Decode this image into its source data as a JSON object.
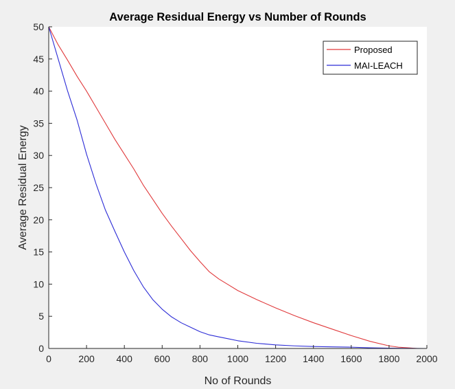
{
  "chart_data": {
    "type": "line",
    "title": "Average Residual Energy vs Number of Rounds",
    "xlabel": "No of Rounds",
    "ylabel": "Average Residual Energy",
    "xlim": [
      0,
      2000
    ],
    "ylim": [
      0,
      50
    ],
    "xticks": [
      0,
      200,
      400,
      600,
      800,
      1000,
      1200,
      1400,
      1600,
      1800,
      2000
    ],
    "yticks": [
      0,
      5,
      10,
      15,
      20,
      25,
      30,
      35,
      40,
      45,
      50
    ],
    "grid": false,
    "legend_position": "top-right",
    "series": [
      {
        "name": "Proposed",
        "color": "#e0393b",
        "x": [
          0,
          50,
          100,
          150,
          200,
          250,
          300,
          350,
          400,
          450,
          500,
          550,
          600,
          650,
          700,
          750,
          800,
          850,
          900,
          950,
          1000,
          1100,
          1200,
          1300,
          1400,
          1500,
          1600,
          1700,
          1800,
          1850,
          1900,
          1950,
          2000
        ],
        "values": [
          50,
          47.2,
          44.8,
          42.3,
          40,
          37.5,
          35,
          32.5,
          30.2,
          27.9,
          25.4,
          23.2,
          21,
          19,
          17.1,
          15.2,
          13.5,
          11.9,
          10.8,
          9.9,
          9,
          7.6,
          6.3,
          5.1,
          4,
          3,
          2,
          1.1,
          0.4,
          0.2,
          0.1,
          0,
          0
        ]
      },
      {
        "name": "MAI-LEACH",
        "color": "#2b2bd6",
        "x": [
          0,
          50,
          100,
          150,
          200,
          250,
          300,
          350,
          400,
          450,
          500,
          550,
          600,
          650,
          700,
          750,
          800,
          850,
          900,
          950,
          1000,
          1100,
          1200,
          1300,
          1400,
          1500,
          1600,
          1700,
          1800,
          1900,
          2000
        ],
        "values": [
          50,
          45,
          40,
          35.5,
          30.2,
          25.6,
          21.5,
          18.2,
          15,
          12.1,
          9.6,
          7.6,
          6.1,
          4.9,
          4,
          3.3,
          2.6,
          2.1,
          1.8,
          1.5,
          1.2,
          0.8,
          0.55,
          0.4,
          0.3,
          0.25,
          0.2,
          0.1,
          0.05,
          0.02,
          0
        ]
      }
    ]
  }
}
